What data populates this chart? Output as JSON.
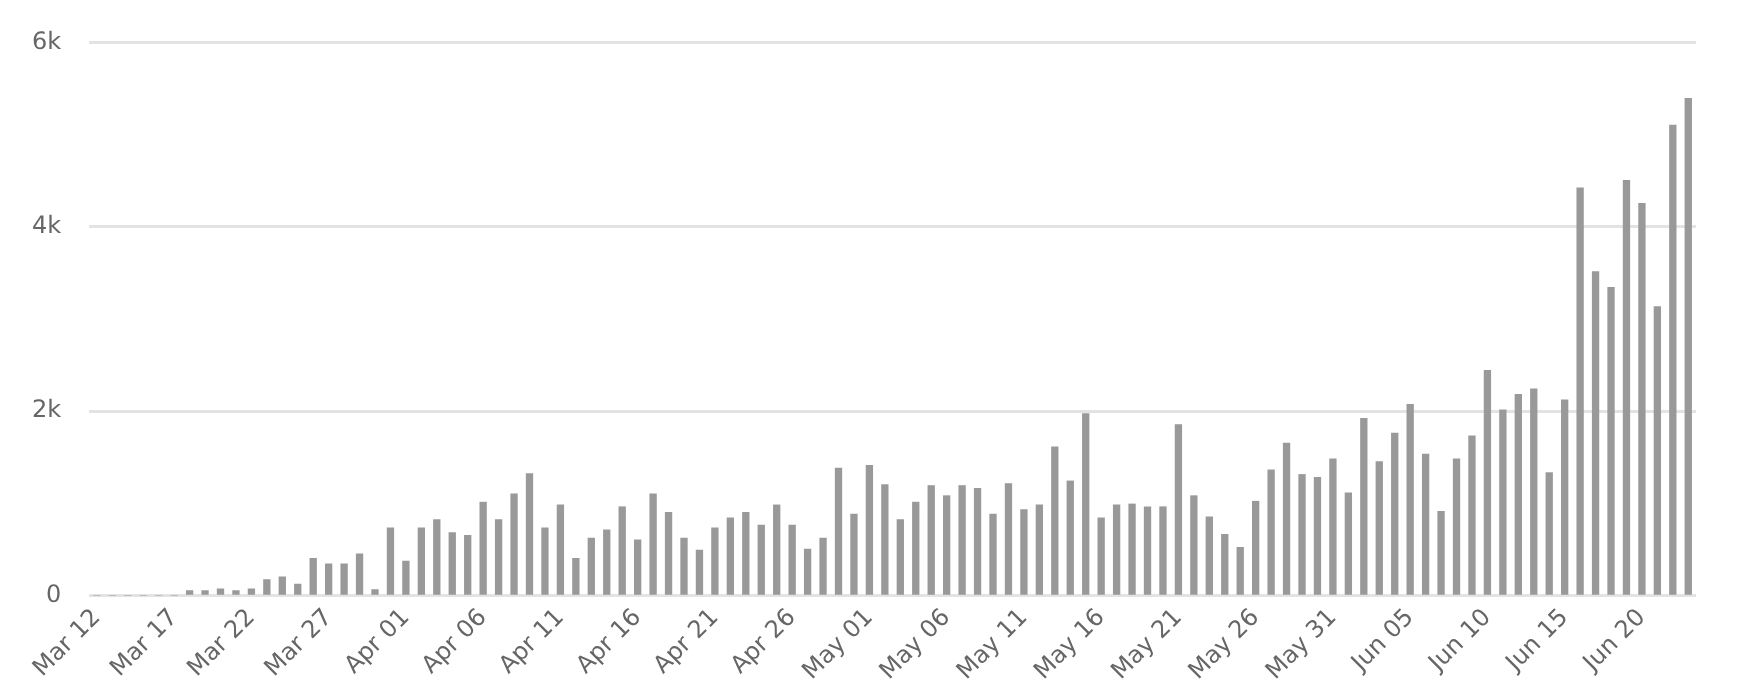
{
  "chart_data": {
    "type": "bar",
    "categories": [
      "Mar 12",
      null,
      null,
      null,
      null,
      "Mar 17",
      null,
      null,
      null,
      null,
      "Mar 22",
      null,
      null,
      null,
      null,
      "Mar 27",
      null,
      null,
      null,
      null,
      "Apr 01",
      null,
      null,
      null,
      null,
      "Apr 06",
      null,
      null,
      null,
      null,
      "Apr 11",
      null,
      null,
      null,
      null,
      "Apr 16",
      null,
      null,
      null,
      null,
      "Apr 21",
      null,
      null,
      null,
      null,
      "Apr 26",
      null,
      null,
      null,
      null,
      "May 01",
      null,
      null,
      null,
      null,
      "May 06",
      null,
      null,
      null,
      null,
      "May 11",
      null,
      null,
      null,
      null,
      "May 16",
      null,
      null,
      null,
      null,
      "May 21",
      null,
      null,
      null,
      null,
      "May 26",
      null,
      null,
      null,
      null,
      "May 31",
      null,
      null,
      null,
      null,
      "Jun 05",
      null,
      null,
      null,
      null,
      "Jun 10",
      null,
      null,
      null,
      null,
      "Jun 15",
      null,
      null,
      null,
      null,
      "Jun 20",
      null,
      null,
      null
    ],
    "values": [
      0,
      0,
      0,
      0,
      0,
      0,
      50,
      50,
      70,
      50,
      70,
      170,
      200,
      120,
      400,
      340,
      340,
      450,
      60,
      730,
      370,
      730,
      820,
      680,
      650,
      1010,
      820,
      1100,
      1320,
      730,
      980,
      400,
      620,
      710,
      960,
      600,
      1100,
      900,
      620,
      490,
      730,
      840,
      900,
      760,
      980,
      760,
      500,
      620,
      1380,
      880,
      1410,
      1200,
      820,
      1010,
      1190,
      1080,
      1190,
      1160,
      880,
      1210,
      930,
      980,
      1610,
      1240,
      1970,
      840,
      980,
      990,
      960,
      960,
      1850,
      1080,
      850,
      660,
      520,
      1020,
      1360,
      1650,
      1310,
      1280,
      1480,
      1110,
      1920,
      1450,
      1760,
      2070,
      1530,
      910,
      1480,
      1730,
      2440,
      2010,
      2180,
      2240,
      1330,
      2120,
      4420,
      3510,
      3340,
      4500,
      4250,
      3130,
      5100,
      5390
    ],
    "color": "#999999",
    "ylim": [
      0,
      6000
    ],
    "yticks": [
      {
        "value": 0,
        "label": "0"
      },
      {
        "value": 2000,
        "label": "2k"
      },
      {
        "value": 4000,
        "label": "4k"
      },
      {
        "value": 6000,
        "label": "6k"
      }
    ],
    "grid": "y"
  }
}
